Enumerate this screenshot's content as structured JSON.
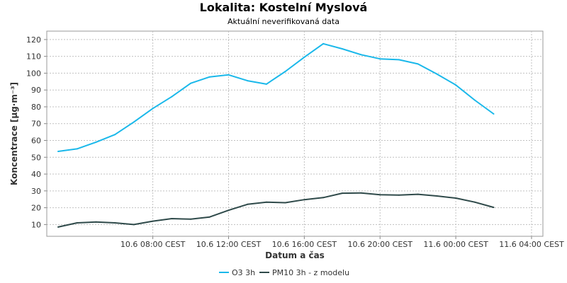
{
  "chart_data": {
    "type": "line",
    "title": "Lokalita: Kostelní Myslová",
    "subtitle": "Aktuální neverifikovaná data",
    "xlabel": "Datum a čas",
    "ylabel": "Koncentrace [µg·m⁻³]",
    "ylim": [
      3,
      125
    ],
    "yticks": [
      10,
      20,
      30,
      40,
      50,
      60,
      70,
      80,
      90,
      100,
      110,
      120
    ],
    "x_start": "10.6 03:00 CEST",
    "x_step_hours": 1,
    "xticks": [
      {
        "hour": 5,
        "label": "10.6 08:00 CEST"
      },
      {
        "hour": 9,
        "label": "10.6 12:00 CEST"
      },
      {
        "hour": 13,
        "label": "10.6 16:00 CEST"
      },
      {
        "hour": 17,
        "label": "10.6 20:00 CEST"
      },
      {
        "hour": 21,
        "label": "11.6 00:00 CEST"
      },
      {
        "hour": 25,
        "label": "11.6 04:00 CEST"
      }
    ],
    "xlim_hours": [
      -0.6,
      25.6
    ],
    "series": [
      {
        "name": "O3 3h",
        "color": "#1ab8ea",
        "values": [
          53.5,
          55,
          59,
          63.5,
          71,
          79,
          86,
          94,
          97.8,
          99,
          95.5,
          93.5,
          101,
          109.5,
          117.5,
          114.5,
          111,
          108.5,
          108,
          105.5,
          99.5,
          93,
          84,
          75.8
        ]
      },
      {
        "name": "PM10 3h - z modelu",
        "color": "#2f4a4a",
        "values": [
          8.5,
          11,
          11.5,
          11,
          10,
          12,
          13.5,
          13.2,
          14.5,
          18.5,
          22,
          23.3,
          23,
          24.8,
          26,
          28.6,
          28.8,
          27.7,
          27.5,
          28,
          27,
          25.7,
          23.3,
          20.2
        ]
      }
    ],
    "grid": true,
    "legend": "bottom-center"
  }
}
